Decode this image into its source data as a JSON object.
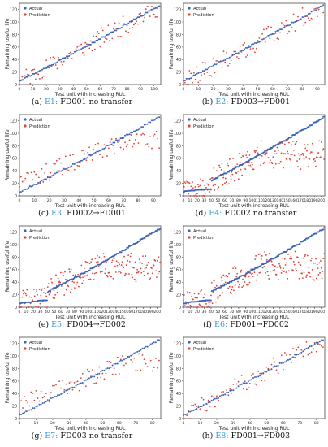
{
  "figure": {
    "legend": {
      "actual": "Actual",
      "prediction": "Prediction"
    },
    "xlabel": "Test unit with increasing RUL",
    "ylabel": "Remaining useful life",
    "colors": {
      "actual": "#3b63b8",
      "prediction": "#d9433a",
      "caption_accent": "#3a9ad9"
    }
  },
  "panels": [
    {
      "letter": "(a)",
      "exp": "E1:",
      "desc": "FD001 no transfer",
      "xmax": 100,
      "xticks": [
        0,
        10,
        20,
        30,
        40,
        50,
        60,
        70,
        80,
        90,
        100
      ],
      "yticks": [
        0,
        20,
        40,
        60,
        80,
        100,
        120
      ],
      "seed": 11,
      "pattern": "good"
    },
    {
      "letter": "(b)",
      "exp": "E2:",
      "desc": "FD003→FD001",
      "xmax": 100,
      "xticks": [
        0,
        10,
        20,
        30,
        40,
        50,
        60,
        70,
        80,
        90
      ],
      "yticks": [
        0,
        20,
        40,
        60,
        80,
        100,
        120
      ],
      "seed": 22,
      "pattern": "good"
    },
    {
      "letter": "(c)",
      "exp": "E3:",
      "desc": "FD002→FD001",
      "xmax": 100,
      "xticks": [
        0,
        10,
        20,
        30,
        40,
        50,
        60,
        70,
        80,
        90
      ],
      "yticks": [
        0,
        20,
        40,
        60,
        80,
        100,
        120
      ],
      "seed": 33,
      "pattern": "flat"
    },
    {
      "letter": "(d)",
      "exp": "E4:",
      "desc": "FD002 no transfer",
      "xmax": 259,
      "xticks": [
        0,
        10,
        20,
        30,
        40,
        50,
        60,
        70,
        80,
        90,
        100,
        110,
        120,
        130,
        140,
        150,
        160,
        170,
        180,
        190,
        200
      ],
      "yticks": [
        0,
        20,
        40,
        60,
        80,
        100,
        120
      ],
      "seed": 44,
      "pattern": "scatter"
    },
    {
      "letter": "(e)",
      "exp": "E5:",
      "desc": "FD004→FD002",
      "xmax": 259,
      "xticks": [
        0,
        10,
        20,
        30,
        40,
        50,
        60,
        70,
        80,
        90,
        100,
        110,
        120,
        130,
        140,
        150,
        160,
        170,
        180,
        190,
        200
      ],
      "yticks": [
        0,
        20,
        40,
        60,
        80,
        100,
        120
      ],
      "seed": 55,
      "pattern": "scatter"
    },
    {
      "letter": "(f)",
      "exp": "E6:",
      "desc": "FD001→FD002",
      "xmax": 259,
      "xticks": [
        0,
        10,
        20,
        30,
        40,
        50,
        60,
        70,
        80,
        90,
        100,
        110,
        120,
        130,
        140,
        150,
        160,
        170,
        180,
        190,
        200
      ],
      "yticks": [
        0,
        20,
        40,
        60,
        80,
        100,
        120
      ],
      "seed": 66,
      "pattern": "scatter"
    },
    {
      "letter": "(g)",
      "exp": "E7:",
      "desc": "FD003 no transfer",
      "xmax": 100,
      "xticks": [
        0,
        10,
        20,
        30,
        40,
        50,
        60,
        70,
        80
      ],
      "yticks": [
        0,
        20,
        40,
        60,
        80,
        100,
        120
      ],
      "seed": 77,
      "pattern": "flat"
    },
    {
      "letter": "(h)",
      "exp": "E8:",
      "desc": "FD001→FD003",
      "xmax": 100,
      "xticks": [
        0,
        10,
        20,
        30,
        40,
        50,
        60,
        70,
        80
      ],
      "yticks": [
        0,
        20,
        40,
        60,
        80,
        100,
        120
      ],
      "seed": 88,
      "pattern": "good"
    }
  ],
  "chart_data": [
    {
      "type": "scatter",
      "xlabel": "Test unit with increasing RUL",
      "ylabel": "Remaining useful life",
      "xlim": [
        0,
        100
      ],
      "ylim": [
        0,
        130
      ],
      "series": [
        {
          "name": "Actual",
          "trend": "monotonic increasing from ~7 to ~127"
        },
        {
          "name": "Prediction",
          "values": "scattered around actual"
        }
      ]
    },
    {
      "type": "scatter",
      "xlabel": "Test unit with increasing RUL",
      "ylabel": "Remaining useful life",
      "xlim": [
        0,
        100
      ],
      "ylim": [
        0,
        130
      ],
      "series": [
        {
          "name": "Actual"
        },
        {
          "name": "Prediction"
        }
      ]
    },
    {
      "type": "scatter",
      "xlabel": "Test unit with increasing RUL",
      "ylabel": "Remaining useful life",
      "xlim": [
        0,
        100
      ],
      "ylim": [
        0,
        130
      ],
      "series": [
        {
          "name": "Actual"
        },
        {
          "name": "Prediction"
        }
      ]
    },
    {
      "type": "scatter",
      "xlabel": "Test unit with increasing RUL",
      "ylabel": "Remaining useful life",
      "xlim": [
        0,
        259
      ],
      "ylim": [
        0,
        130
      ],
      "series": [
        {
          "name": "Actual"
        },
        {
          "name": "Prediction"
        }
      ]
    },
    {
      "type": "scatter",
      "xlabel": "Test unit with increasing RUL",
      "ylabel": "Remaining useful life",
      "xlim": [
        0,
        259
      ],
      "ylim": [
        0,
        130
      ],
      "series": [
        {
          "name": "Actual"
        },
        {
          "name": "Prediction"
        }
      ]
    },
    {
      "type": "scatter",
      "xlabel": "Test unit with increasing RUL",
      "ylabel": "Remaining useful life",
      "xlim": [
        0,
        259
      ],
      "ylim": [
        0,
        130
      ],
      "series": [
        {
          "name": "Actual"
        },
        {
          "name": "Prediction"
        }
      ]
    },
    {
      "type": "scatter",
      "xlabel": "Test unit with increasing RUL",
      "ylabel": "Remaining useful life",
      "xlim": [
        0,
        100
      ],
      "ylim": [
        0,
        130
      ],
      "series": [
        {
          "name": "Actual"
        },
        {
          "name": "Prediction"
        }
      ]
    },
    {
      "type": "scatter",
      "xlabel": "Test unit with increasing RUL",
      "ylabel": "Remaining useful life",
      "xlim": [
        0,
        100
      ],
      "ylim": [
        0,
        130
      ],
      "series": [
        {
          "name": "Actual"
        },
        {
          "name": "Prediction"
        }
      ]
    }
  ]
}
